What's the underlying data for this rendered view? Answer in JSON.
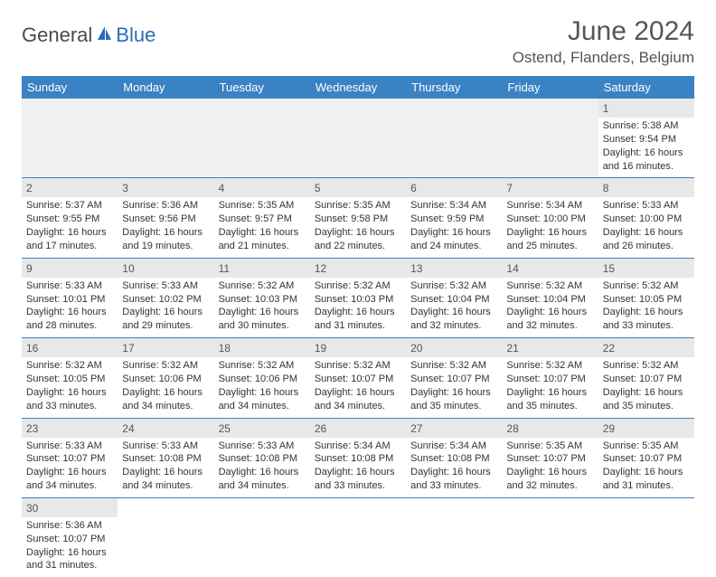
{
  "brand": {
    "part1": "General",
    "part2": "Blue"
  },
  "colors": {
    "header_bg": "#3b82c4",
    "header_text": "#ffffff",
    "strip_bg": "#e8e8e8",
    "border": "#3b82c4",
    "text": "#333333",
    "brand_blue": "#2a6db4",
    "brand_gray": "#4a4a4a"
  },
  "title": "June 2024",
  "location": "Ostend, Flanders, Belgium",
  "day_headers": [
    "Sunday",
    "Monday",
    "Tuesday",
    "Wednesday",
    "Thursday",
    "Friday",
    "Saturday"
  ],
  "labels": {
    "sunrise": "Sunrise:",
    "sunset": "Sunset:",
    "daylight": "Daylight:"
  },
  "weeks": [
    [
      null,
      null,
      null,
      null,
      null,
      null,
      {
        "n": "1",
        "sr": "5:38 AM",
        "ss": "9:54 PM",
        "dl": "16 hours and 16 minutes."
      }
    ],
    [
      {
        "n": "2",
        "sr": "5:37 AM",
        "ss": "9:55 PM",
        "dl": "16 hours and 17 minutes."
      },
      {
        "n": "3",
        "sr": "5:36 AM",
        "ss": "9:56 PM",
        "dl": "16 hours and 19 minutes."
      },
      {
        "n": "4",
        "sr": "5:35 AM",
        "ss": "9:57 PM",
        "dl": "16 hours and 21 minutes."
      },
      {
        "n": "5",
        "sr": "5:35 AM",
        "ss": "9:58 PM",
        "dl": "16 hours and 22 minutes."
      },
      {
        "n": "6",
        "sr": "5:34 AM",
        "ss": "9:59 PM",
        "dl": "16 hours and 24 minutes."
      },
      {
        "n": "7",
        "sr": "5:34 AM",
        "ss": "10:00 PM",
        "dl": "16 hours and 25 minutes."
      },
      {
        "n": "8",
        "sr": "5:33 AM",
        "ss": "10:00 PM",
        "dl": "16 hours and 26 minutes."
      }
    ],
    [
      {
        "n": "9",
        "sr": "5:33 AM",
        "ss": "10:01 PM",
        "dl": "16 hours and 28 minutes."
      },
      {
        "n": "10",
        "sr": "5:33 AM",
        "ss": "10:02 PM",
        "dl": "16 hours and 29 minutes."
      },
      {
        "n": "11",
        "sr": "5:32 AM",
        "ss": "10:03 PM",
        "dl": "16 hours and 30 minutes."
      },
      {
        "n": "12",
        "sr": "5:32 AM",
        "ss": "10:03 PM",
        "dl": "16 hours and 31 minutes."
      },
      {
        "n": "13",
        "sr": "5:32 AM",
        "ss": "10:04 PM",
        "dl": "16 hours and 32 minutes."
      },
      {
        "n": "14",
        "sr": "5:32 AM",
        "ss": "10:04 PM",
        "dl": "16 hours and 32 minutes."
      },
      {
        "n": "15",
        "sr": "5:32 AM",
        "ss": "10:05 PM",
        "dl": "16 hours and 33 minutes."
      }
    ],
    [
      {
        "n": "16",
        "sr": "5:32 AM",
        "ss": "10:05 PM",
        "dl": "16 hours and 33 minutes."
      },
      {
        "n": "17",
        "sr": "5:32 AM",
        "ss": "10:06 PM",
        "dl": "16 hours and 34 minutes."
      },
      {
        "n": "18",
        "sr": "5:32 AM",
        "ss": "10:06 PM",
        "dl": "16 hours and 34 minutes."
      },
      {
        "n": "19",
        "sr": "5:32 AM",
        "ss": "10:07 PM",
        "dl": "16 hours and 34 minutes."
      },
      {
        "n": "20",
        "sr": "5:32 AM",
        "ss": "10:07 PM",
        "dl": "16 hours and 35 minutes."
      },
      {
        "n": "21",
        "sr": "5:32 AM",
        "ss": "10:07 PM",
        "dl": "16 hours and 35 minutes."
      },
      {
        "n": "22",
        "sr": "5:32 AM",
        "ss": "10:07 PM",
        "dl": "16 hours and 35 minutes."
      }
    ],
    [
      {
        "n": "23",
        "sr": "5:33 AM",
        "ss": "10:07 PM",
        "dl": "16 hours and 34 minutes."
      },
      {
        "n": "24",
        "sr": "5:33 AM",
        "ss": "10:08 PM",
        "dl": "16 hours and 34 minutes."
      },
      {
        "n": "25",
        "sr": "5:33 AM",
        "ss": "10:08 PM",
        "dl": "16 hours and 34 minutes."
      },
      {
        "n": "26",
        "sr": "5:34 AM",
        "ss": "10:08 PM",
        "dl": "16 hours and 33 minutes."
      },
      {
        "n": "27",
        "sr": "5:34 AM",
        "ss": "10:08 PM",
        "dl": "16 hours and 33 minutes."
      },
      {
        "n": "28",
        "sr": "5:35 AM",
        "ss": "10:07 PM",
        "dl": "16 hours and 32 minutes."
      },
      {
        "n": "29",
        "sr": "5:35 AM",
        "ss": "10:07 PM",
        "dl": "16 hours and 31 minutes."
      }
    ],
    [
      {
        "n": "30",
        "sr": "5:36 AM",
        "ss": "10:07 PM",
        "dl": "16 hours and 31 minutes."
      },
      null,
      null,
      null,
      null,
      null,
      null
    ]
  ]
}
